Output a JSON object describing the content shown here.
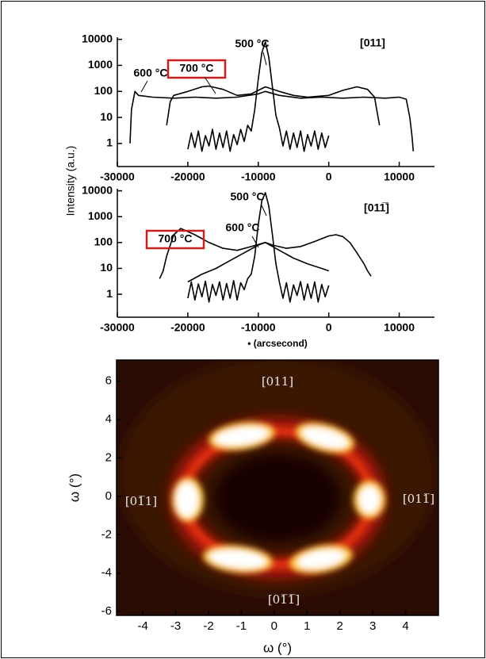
{
  "chart_data": [
    {
      "type": "line",
      "log_y": true,
      "ylabel": "Intensity (a.u.)",
      "xlim": [
        -30000,
        15000
      ],
      "xticks": [
        -30000,
        -20000,
        -10000,
        0,
        10000
      ],
      "ylim": [
        0.13,
        12000
      ],
      "yticks": [
        1,
        10,
        100,
        1000,
        10000
      ],
      "series": [
        {
          "color": "#000000",
          "x": [
            -20000,
            -19500,
            -19000,
            -18500,
            -18000,
            -17500,
            -17000,
            -16500,
            -16000,
            -15500,
            -15000,
            -14500,
            -14000,
            -13500,
            -13000,
            -12500,
            -12000,
            -11500,
            -11000,
            -10500,
            -10000,
            -9500,
            -9000,
            -8500,
            -8000,
            -7500,
            -7000,
            -6500,
            -6000,
            -5500,
            -5000,
            -4500,
            -4000,
            -3500,
            -3000,
            -2500,
            -2000,
            -1500,
            -1000,
            -500,
            0
          ],
          "values": [
            0.6,
            2.5,
            0.7,
            3,
            0.5,
            2,
            0.8,
            3.5,
            0.6,
            2.5,
            0.7,
            3,
            0.5,
            2.2,
            0.9,
            3.5,
            1.2,
            5,
            3,
            20,
            300,
            3000,
            8000,
            2000,
            150,
            12,
            4,
            0.8,
            3,
            0.6,
            2.5,
            0.7,
            3,
            0.5,
            2.2,
            0.8,
            3,
            0.6,
            2.5,
            0.7,
            2
          ]
        },
        {
          "color": "#000000",
          "x": [
            -28200,
            -28000,
            -27500,
            -27000,
            -25000,
            -22000,
            -19000,
            -16000,
            -13000,
            -10000,
            -9000,
            -7000,
            -4000,
            -1000,
            2000,
            5000,
            8000,
            10000,
            11000,
            11500,
            11800,
            12000
          ],
          "values": [
            1,
            20,
            100,
            70,
            60,
            55,
            60,
            55,
            60,
            80,
            100,
            70,
            55,
            60,
            55,
            60,
            55,
            60,
            50,
            10,
            2,
            0.5
          ]
        },
        {
          "color": "#000000",
          "x": [
            -23000,
            -22500,
            -22000,
            -20000,
            -18000,
            -17000,
            -15000,
            -13000,
            -11000,
            -9000,
            -7000,
            -5000,
            -3000,
            0,
            2000,
            4000,
            5500,
            6500,
            7000,
            7200
          ],
          "values": [
            5,
            40,
            70,
            100,
            150,
            160,
            120,
            70,
            80,
            150,
            100,
            70,
            60,
            70,
            110,
            150,
            120,
            60,
            10,
            5
          ]
        }
      ],
      "annotations": [
        {
          "text": "500 °C"
        },
        {
          "text": "[011]"
        },
        {
          "text": "600 °C"
        },
        {
          "text": "700 °C",
          "box_color": "#c8201e"
        }
      ]
    },
    {
      "type": "line",
      "log_y": true,
      "xlabel": "• (arcsecond)",
      "xlim": [
        -30000,
        15000
      ],
      "xticks": [
        -30000,
        -20000,
        -10000,
        0,
        10000
      ],
      "ylim": [
        0.13,
        12000
      ],
      "yticks": [
        1,
        10,
        100,
        1000,
        10000
      ],
      "series": [
        {
          "color": "#000000",
          "x": [
            -20000,
            -19500,
            -19000,
            -18500,
            -18000,
            -17500,
            -17000,
            -16500,
            -16000,
            -15500,
            -15000,
            -14500,
            -14000,
            -13500,
            -13000,
            -12500,
            -12000,
            -11500,
            -11000,
            -10500,
            -10000,
            -9500,
            -9000,
            -8500,
            -8000,
            -7500,
            -7000,
            -6500,
            -6000,
            -5500,
            -5000,
            -4500,
            -4000,
            -3500,
            -3000,
            -2500,
            -2000,
            -1500,
            -1000,
            -500,
            0
          ],
          "values": [
            0.7,
            3,
            0.6,
            2.5,
            0.8,
            3.2,
            0.5,
            2.4,
            0.9,
            3,
            0.6,
            2.6,
            0.7,
            3.4,
            0.6,
            2.8,
            1.5,
            4,
            6,
            30,
            500,
            4000,
            8500,
            2500,
            200,
            15,
            3,
            0.7,
            2.8,
            0.5,
            2.3,
            0.9,
            3.1,
            0.6,
            2.5,
            0.7,
            3,
            0.5,
            2.4,
            0.8,
            2.2
          ]
        },
        {
          "color": "#000000",
          "x": [
            -20000,
            -18000,
            -16000,
            -14000,
            -12000,
            -10000,
            -9000,
            -8000,
            -6000,
            -4000,
            -2000,
            0,
            1000,
            2000,
            3000,
            4000,
            5000,
            5500,
            6000
          ],
          "values": [
            3,
            6,
            10,
            20,
            40,
            80,
            100,
            80,
            60,
            70,
            110,
            180,
            200,
            170,
            100,
            40,
            15,
            8,
            5
          ]
        },
        {
          "color": "#000000",
          "x": [
            -24000,
            -23500,
            -23000,
            -22000,
            -21000,
            -19000,
            -17000,
            -15000,
            -13000,
            -11000,
            -9000,
            -7000,
            -5000,
            -3000,
            -1000,
            0
          ],
          "values": [
            4,
            8,
            30,
            200,
            350,
            200,
            100,
            60,
            50,
            70,
            100,
            50,
            25,
            15,
            10,
            8
          ]
        }
      ],
      "annotations": [
        {
          "text": "500 °C"
        },
        {
          "text": "[011̅]"
        },
        {
          "text": "600 °C"
        },
        {
          "text": "700 °C",
          "box_color": "#c8201e"
        }
      ]
    },
    {
      "type": "heatmap",
      "xlabel": "ω (°)",
      "ylabel": "ω (°)",
      "xlim": [
        -4.8,
        5
      ],
      "xticks": [
        -4,
        -3,
        -2,
        -1,
        0,
        1,
        2,
        3,
        4
      ],
      "ylim": [
        -6.2,
        7.1
      ],
      "yticks": [
        -6,
        -4,
        -2,
        0,
        2,
        4,
        6
      ],
      "annotations": [
        {
          "text": "[011]"
        },
        {
          "text": "[01̅1]"
        },
        {
          "text": "[011̅]"
        },
        {
          "text": "[01̅1̅]"
        }
      ]
    }
  ]
}
